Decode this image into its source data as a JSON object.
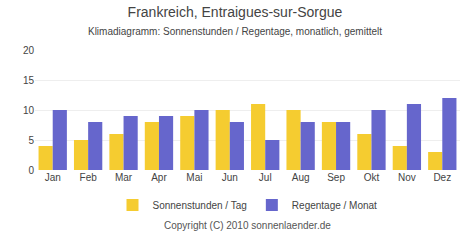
{
  "chart_data": {
    "type": "bar",
    "title": "Frankreich, Entraigues-sur-Sorgue",
    "subtitle": "Klimadiagramm: Sonnenstunden / Regentage, monatlich, gemittelt",
    "categories": [
      "Jan",
      "Feb",
      "Mar",
      "Apr",
      "Mai",
      "Jun",
      "Jul",
      "Aug",
      "Sep",
      "Okt",
      "Nov",
      "Dez"
    ],
    "series": [
      {
        "name": "Sonnenstunden / Tag",
        "color": "#F5CC30",
        "values": [
          4,
          5,
          6,
          8,
          9,
          10,
          11,
          10,
          8,
          6,
          4,
          3
        ]
      },
      {
        "name": "Regentage / Monat",
        "color": "#6666CC",
        "values": [
          10,
          8,
          9,
          9,
          10,
          8,
          5,
          8,
          8,
          10,
          11,
          12
        ]
      }
    ],
    "ylim": [
      0,
      20
    ],
    "yticks": [
      0,
      5,
      10,
      15,
      20
    ],
    "grid": true,
    "legend": "bottom",
    "annotations": [
      "Copyright (C) 2010 sonnenlaender.de"
    ]
  }
}
